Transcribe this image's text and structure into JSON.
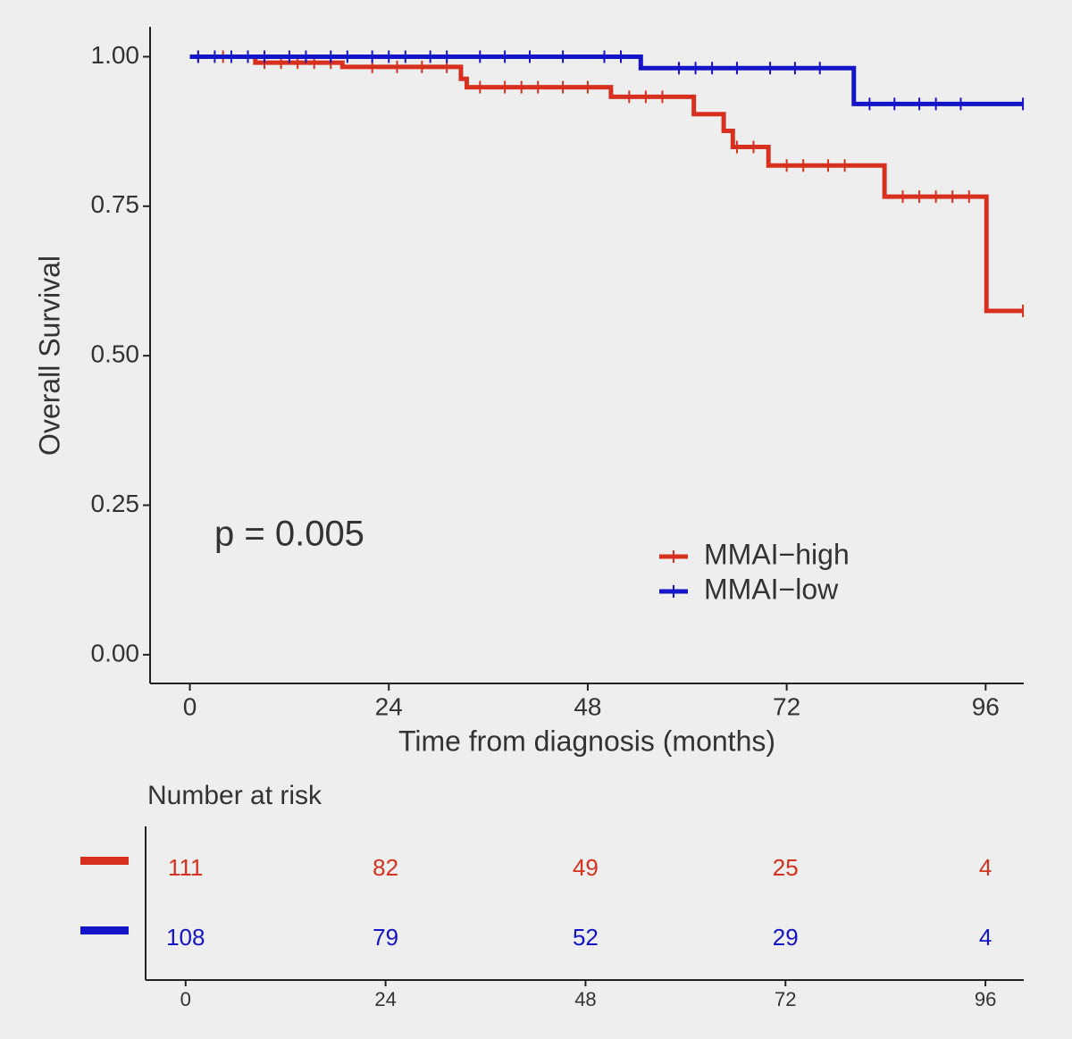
{
  "chart_data": {
    "type": "step-line",
    "y_label": "Overall Survival",
    "x_label": "Time from diagnosis (months)",
    "annotation": "p = 0.005",
    "risk_table_title": "Number at risk",
    "xlim": [
      -4.8,
      100.6
    ],
    "ylim": [
      -0.048,
      1.05
    ],
    "xticks": [
      0,
      24,
      48,
      72,
      96
    ],
    "yticks": [
      {
        "value": 0,
        "label": "0.00"
      },
      {
        "value": 0.25,
        "label": "0.25"
      },
      {
        "value": 0.5,
        "label": "0.50"
      },
      {
        "value": 0.75,
        "label": "0.75"
      },
      {
        "value": 1,
        "label": "1.00"
      }
    ],
    "legend": "bottom-right",
    "series": [
      {
        "name": "MMAI−high",
        "color": "#d7301f",
        "x": [
          0,
          7.9,
          18.4,
          32.7,
          33.4,
          50.8,
          60.8,
          64.4,
          65.5,
          69.8,
          83.8,
          96.1,
          100.6
        ],
        "values": [
          1.0,
          0.99,
          0.983,
          0.963,
          0.949,
          0.933,
          0.904,
          0.876,
          0.849,
          0.818,
          0.766,
          0.575,
          0.575
        ],
        "censor_x": [
          1,
          4,
          7,
          9,
          11,
          13,
          15,
          17,
          22,
          25,
          28,
          31,
          35,
          38,
          40,
          42,
          45,
          48,
          53,
          55,
          57,
          66,
          68,
          72,
          74,
          77,
          79,
          86,
          88,
          90,
          92,
          94,
          100.5
        ],
        "at_risk": [
          111,
          82,
          49,
          25,
          4
        ]
      },
      {
        "name": "MMAI−low",
        "color": "#1414c8",
        "x": [
          0,
          54.4,
          80.1,
          100.6
        ],
        "values": [
          1.0,
          0.981,
          0.921,
          0.921
        ],
        "censor_x": [
          1,
          3,
          5,
          7,
          9,
          12,
          14,
          17,
          19,
          22,
          24,
          26,
          29,
          31,
          35,
          38,
          41,
          45,
          50,
          52,
          59,
          61,
          63,
          66,
          70,
          73,
          76,
          82,
          85,
          88,
          90,
          93,
          100.5
        ],
        "at_risk": [
          108,
          79,
          52,
          29,
          4
        ]
      }
    ]
  }
}
